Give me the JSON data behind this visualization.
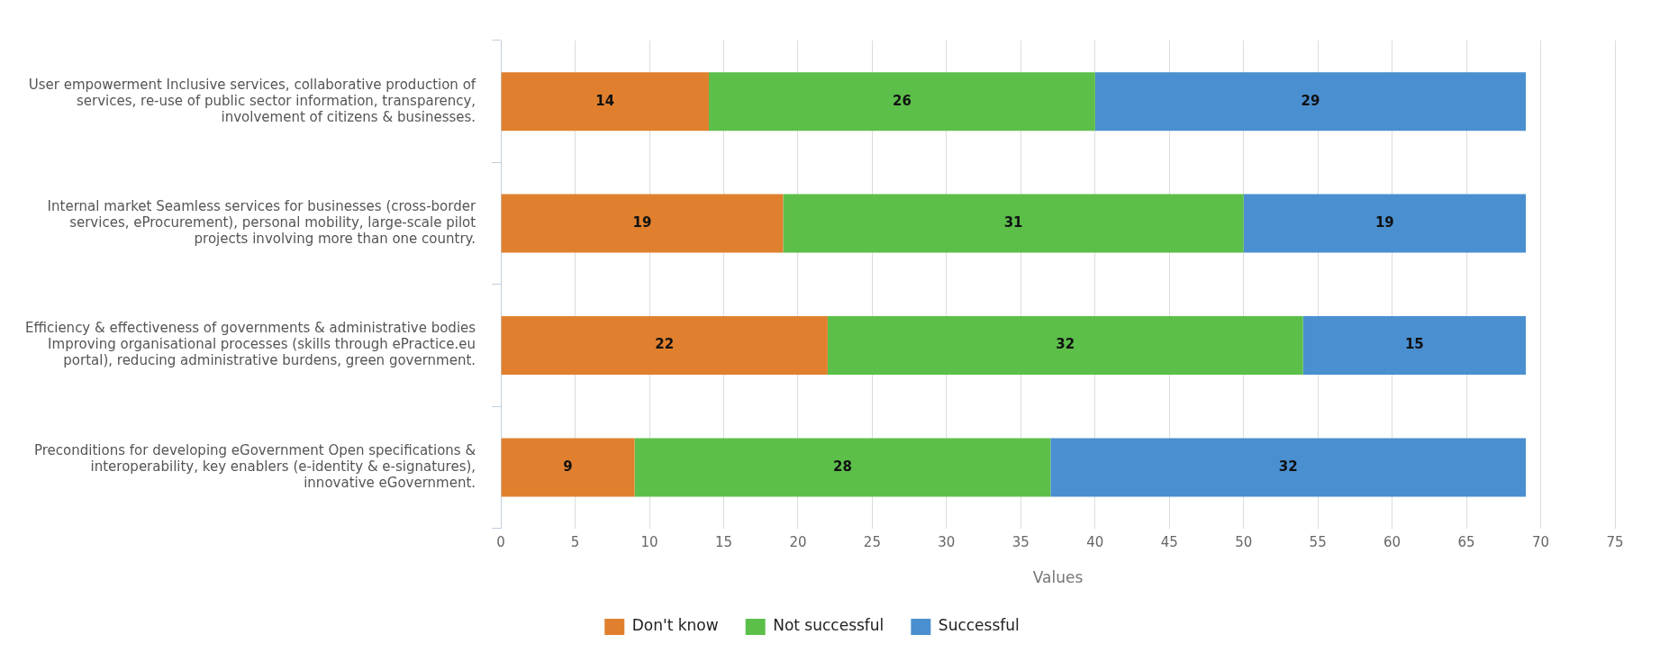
{
  "chart_data": {
    "type": "bar",
    "orientation": "horizontal",
    "stacked": true,
    "xlabel": "Values",
    "categories": [
      "User empowerment Inclusive services, collaborative production of services, re-use of public sector information, transparency, involvement of citizens & businesses.",
      "Internal market Seamless services for businesses (cross-border services, eProcurement), personal mobility, large-scale pilot projects involving more than one country.",
      "Efficiency & effectiveness of governments & administrative bodies Improving organisational processes (skills through ePractice.eu portal), reducing administrative burdens, green government.",
      "Preconditions for developing eGovernment Open specifications & interoperability, key enablers (e-identity & e-signatures), innovative eGovernment."
    ],
    "series": [
      {
        "name": "Don't know",
        "color": "#e0802e",
        "values": [
          14,
          19,
          22,
          9
        ]
      },
      {
        "name": "Not successful",
        "color": "#5cbf4a",
        "values": [
          26,
          31,
          32,
          28
        ]
      },
      {
        "name": "Successful",
        "color": "#4a8fd0",
        "values": [
          29,
          19,
          15,
          32
        ]
      }
    ],
    "xlim": [
      0,
      75
    ],
    "xticks": [
      0,
      5,
      10,
      15,
      20,
      25,
      30,
      35,
      40,
      45,
      50,
      55,
      60,
      65,
      70,
      75
    ],
    "grid": "x",
    "legend": "bottom",
    "data_labels": true
  }
}
